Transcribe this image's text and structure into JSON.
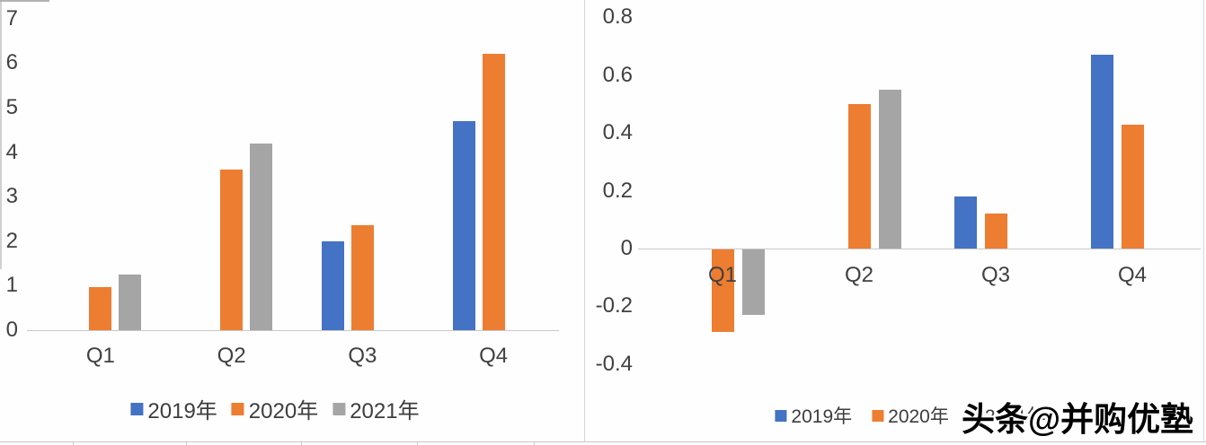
{
  "watermark": {
    "text": "头条@并购优塾"
  },
  "colors": {
    "blue": "#4472C4",
    "orange": "#ED7D31",
    "gray": "#A5A5A5",
    "axis_text": "#404040",
    "axis_line": "#C8C8C8"
  },
  "chart_data": [
    {
      "type": "bar",
      "title": "",
      "xlabel": "",
      "ylabel": "",
      "categories": [
        "Q1",
        "Q2",
        "Q3",
        "Q4"
      ],
      "series": [
        {
          "name": "2019年",
          "color_key": "blue",
          "values": [
            null,
            null,
            2.0,
            4.7
          ]
        },
        {
          "name": "2020年",
          "color_key": "orange",
          "values": [
            0.97,
            3.6,
            2.35,
            6.2
          ]
        },
        {
          "name": "2021年",
          "color_key": "gray",
          "values": [
            1.25,
            4.2,
            null,
            null
          ]
        }
      ],
      "yticks": [
        7,
        6,
        5,
        4,
        3,
        2,
        1,
        0
      ],
      "ytick_labels": [
        "7",
        "6",
        "5",
        "4",
        "3",
        "2",
        "1",
        "0"
      ],
      "ylim": [
        0,
        7
      ],
      "grid": false,
      "legend_position": "bottom"
    },
    {
      "type": "bar",
      "title": "",
      "xlabel": "",
      "ylabel": "",
      "categories": [
        "Q1",
        "Q2",
        "Q3",
        "Q4"
      ],
      "series": [
        {
          "name": "2019年",
          "color_key": "blue",
          "values": [
            null,
            null,
            0.18,
            0.67
          ]
        },
        {
          "name": "2020年",
          "color_key": "orange",
          "values": [
            -0.29,
            0.5,
            0.12,
            0.43
          ]
        },
        {
          "name": "2021年",
          "color_key": "gray",
          "values": [
            -0.23,
            0.55,
            null,
            null
          ]
        }
      ],
      "yticks": [
        0.8,
        0.6,
        0.4,
        0.2,
        0,
        -0.2,
        -0.4
      ],
      "ytick_labels": [
        "0.8",
        "0.6",
        "0.4",
        "0.2",
        "0",
        "-0.2",
        "-0.4"
      ],
      "ylim": [
        -0.4,
        0.8
      ],
      "grid": false,
      "legend_position": "bottom"
    }
  ]
}
